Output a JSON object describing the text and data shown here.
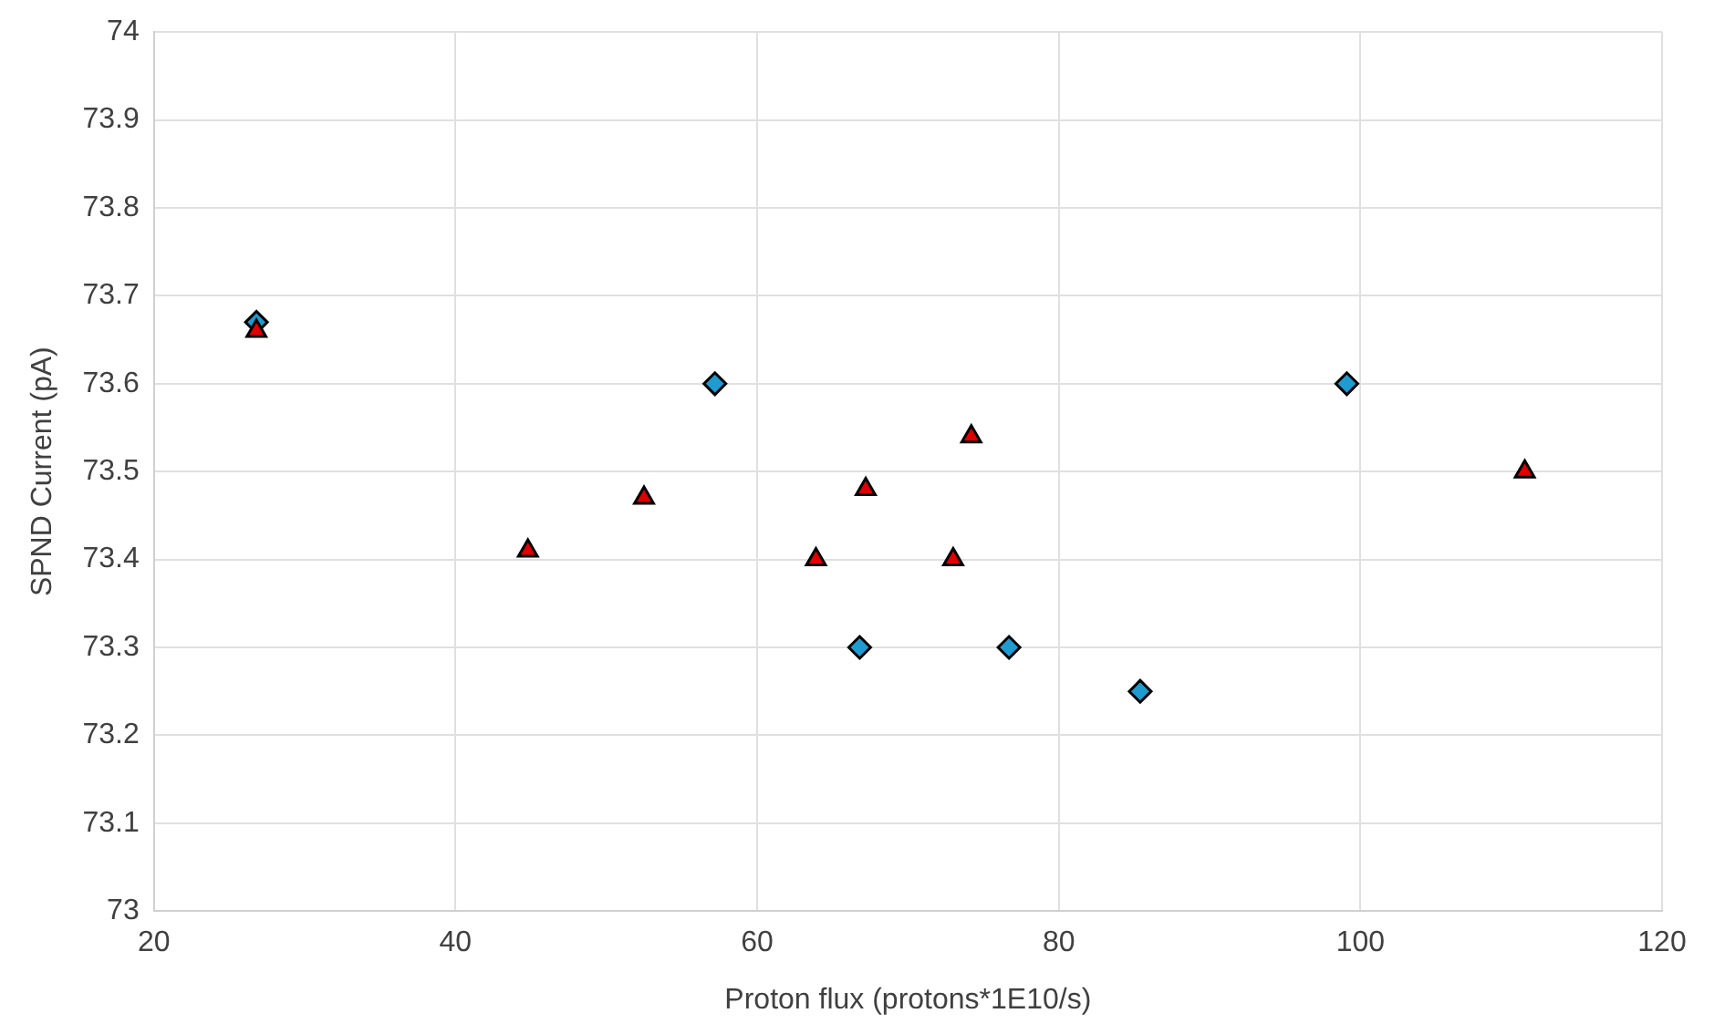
{
  "chart_data": {
    "type": "scatter",
    "xlabel": "Proton flux (protons*1E10/s)",
    "ylabel": "SPND Current (pA)",
    "xlim": [
      20,
      120
    ],
    "xticks": [
      20,
      40,
      60,
      80,
      100,
      120
    ],
    "ylim": [
      73,
      74
    ],
    "yticks": [
      73,
      {
        "value": 73.1,
        "label": "73.1"
      },
      73.2,
      73.3,
      73.4,
      73.5,
      73.6,
      73.7,
      73.8,
      73.9,
      74
    ],
    "grid": true,
    "legend": false,
    "series": [
      {
        "color": "#e00000",
        "marker": "triangle",
        "x": [
          26.8,
          44.8,
          52.5,
          63.9,
          67.2,
          74.2,
          73.0,
          110.9
        ],
        "values": [
          73.66,
          73.41,
          73.47,
          73.4,
          73.48,
          73.54,
          73.4,
          73.5
        ]
      },
      {
        "color": "#1f9bd0",
        "marker": "diamond",
        "x": [
          26.8,
          57.2,
          66.8,
          76.7,
          85.4,
          99.1
        ],
        "values": [
          73.67,
          73.6,
          73.3,
          73.3,
          73.25,
          73.6
        ]
      }
    ]
  }
}
